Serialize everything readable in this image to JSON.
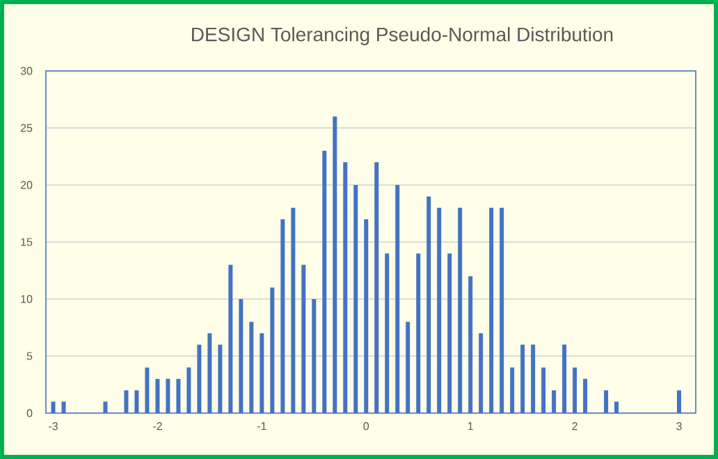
{
  "chart_data": {
    "type": "bar",
    "title": "DESIGN Tolerancing Pseudo-Normal Distribution",
    "x": [
      -3.0,
      -2.9,
      -2.8,
      -2.7,
      -2.6,
      -2.5,
      -2.4,
      -2.3,
      -2.2,
      -2.1,
      -2.0,
      -1.9,
      -1.8,
      -1.7,
      -1.6,
      -1.5,
      -1.4,
      -1.3,
      -1.2,
      -1.1,
      -1.0,
      -0.9,
      -0.8,
      -0.7,
      -0.6,
      -0.5,
      -0.4,
      -0.3,
      -0.2,
      -0.1,
      0.0,
      0.1,
      0.2,
      0.3,
      0.4,
      0.5,
      0.6,
      0.7,
      0.8,
      0.9,
      1.0,
      1.1,
      1.2,
      1.3,
      1.4,
      1.5,
      1.6,
      1.7,
      1.8,
      1.9,
      2.0,
      2.1,
      2.2,
      2.3,
      2.4,
      2.5,
      2.6,
      2.7,
      2.8,
      2.9,
      3.0
    ],
    "values": [
      1,
      1,
      0,
      0,
      0,
      1,
      0,
      2,
      2,
      4,
      3,
      3,
      3,
      4,
      6,
      7,
      6,
      13,
      10,
      8,
      7,
      11,
      17,
      18,
      13,
      10,
      23,
      26,
      22,
      20,
      17,
      22,
      14,
      20,
      8,
      14,
      19,
      18,
      14,
      18,
      12,
      7,
      18,
      18,
      4,
      6,
      6,
      4,
      2,
      6,
      4,
      3,
      0,
      2,
      1,
      0,
      0,
      0,
      0,
      0,
      2
    ],
    "color": "#4472c4",
    "xlim": [
      -3.07,
      3.16
    ],
    "xticks": [
      -3,
      -2,
      -1,
      0,
      1,
      2,
      3
    ],
    "ylim": [
      0,
      30
    ],
    "yticks": [
      0,
      5,
      10,
      15,
      20,
      25,
      30
    ],
    "grid": "y"
  }
}
